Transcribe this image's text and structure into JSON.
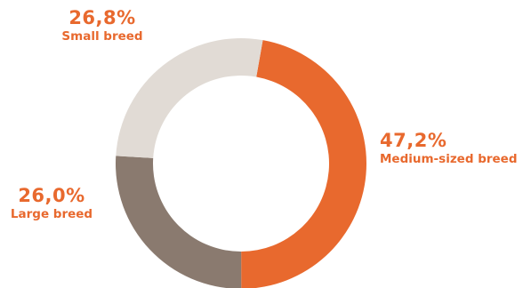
{
  "chart_data": {
    "type": "pie",
    "style": "donut",
    "slices": [
      {
        "label": "Medium-sized breed",
        "value": 47.2,
        "value_text": "47,2%",
        "color": "#e8692e"
      },
      {
        "label": "Large breed",
        "value": 26.0,
        "value_text": "26,0%",
        "color": "#8a7a6f"
      },
      {
        "label": "Small breed",
        "value": 26.8,
        "value_text": "26,8%",
        "color": "#e1dbd5"
      }
    ],
    "start": "top-right, clockwise",
    "label_color": "#e8692e"
  }
}
